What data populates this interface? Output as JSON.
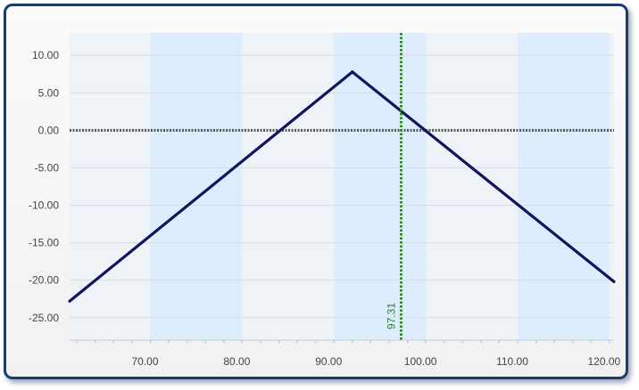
{
  "chart_data": {
    "type": "line",
    "title": "",
    "xlabel": "",
    "ylabel": "",
    "xlim": [
      61.2,
      120.5
    ],
    "ylim": [
      -28,
      13
    ],
    "x_ticks": [
      70,
      80,
      90,
      100,
      110,
      120
    ],
    "x_tick_labels": [
      "70.00",
      "80.00",
      "90.00",
      "100.00",
      "110.00",
      "120.00"
    ],
    "y_ticks": [
      10,
      5,
      0,
      -5,
      -10,
      -15,
      -20,
      -25
    ],
    "y_tick_labels": [
      "10.00",
      "5.00",
      "0.00",
      "-5.00",
      "-10.00",
      "-15.00",
      "-20.00",
      "-25.00"
    ],
    "grid": true,
    "bands": [
      {
        "from": 70,
        "to": 80
      },
      {
        "from": 90,
        "to": 100
      },
      {
        "from": 110,
        "to": 120
      }
    ],
    "series": [
      {
        "color": "#14135e",
        "x": [
          61.2,
          92,
          120.5
        ],
        "y": [
          -22.8,
          7.8,
          -20.2
        ]
      }
    ],
    "zero_line": {
      "y": 0,
      "color": "#555555"
    },
    "marker": {
      "x": 97.31,
      "label": "97.31",
      "color": "#2e8b1e"
    }
  },
  "colors": {
    "plot_bg": "#eef3f8",
    "band": "#ddedfd",
    "grid": "#d6dde6",
    "frame_border": "#1d3a6b"
  }
}
